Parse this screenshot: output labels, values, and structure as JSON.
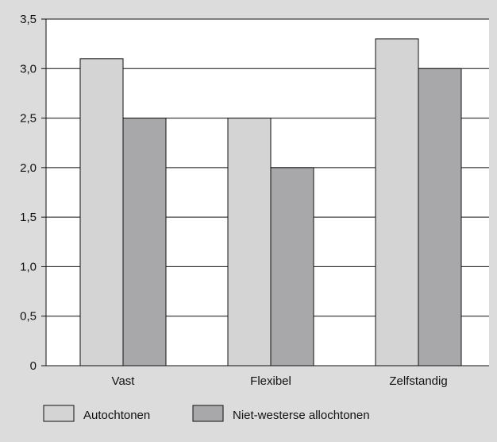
{
  "chart_data": {
    "type": "bar",
    "categories": [
      "Vast",
      "Flexibel",
      "Zelfstandig"
    ],
    "series": [
      {
        "name": "Autochtonen",
        "values": [
          3.1,
          2.5,
          3.3
        ]
      },
      {
        "name": "Niet-westerse allochtonen",
        "values": [
          2.5,
          2.0,
          3.0
        ]
      }
    ],
    "ylim": [
      0,
      3.5
    ],
    "yticks": [
      "0",
      "0,5",
      "1,0",
      "1,5",
      "2,0",
      "2,5",
      "3,0",
      "3,5"
    ],
    "ytick_values": [
      0,
      0.5,
      1.0,
      1.5,
      2.0,
      2.5,
      3.0,
      3.5
    ],
    "title": "",
    "xlabel": "",
    "ylabel": "",
    "grid": true,
    "legend_position": "bottom-left",
    "colors": {
      "page_background": "#dcdcdc",
      "plot_background": "#ffffff",
      "axis": "#111111",
      "series": [
        "#d4d4d4",
        "#a8a8aa"
      ]
    }
  }
}
